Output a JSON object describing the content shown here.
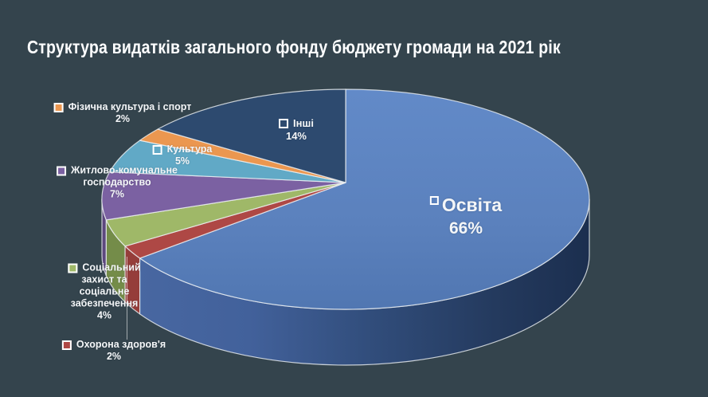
{
  "page": {
    "background": "#34444d"
  },
  "header": {
    "title": "Структура видатків загального фонду бюджету громади на 2021 рік",
    "title_color": "#ffffff"
  },
  "chart_data": {
    "type": "pie",
    "style": "3d",
    "title": "Структура видатків загального фонду бюджету громади на 2021 рік",
    "unit": "percent",
    "total": 100,
    "direction": "clockwise",
    "start_angle_deg": 0,
    "legend_position": "data-labels-with-keys",
    "slices": [
      {
        "slug": "osvita",
        "label": "Освіта",
        "value": 66,
        "percent_label": "66%",
        "color": "#5b81bd",
        "side_color": "gradient"
      },
      {
        "slug": "okhorona-zdorovia",
        "label": "Охорона здоров'я",
        "value": 2,
        "percent_label": "2%",
        "color": "#ae4845",
        "side_color": "#953d3a"
      },
      {
        "slug": "sotsialnyi-zakhyst",
        "label": "Соціальний захист та соціальне забезпечення",
        "value": 4,
        "percent_label": "4%",
        "color": "#9fb868",
        "side_color": "#748c49"
      },
      {
        "slug": "zhytlovo-komunalne",
        "label": "Житлово-комунальне господарство",
        "value": 7,
        "percent_label": "7%",
        "color": "#7b61a2",
        "side_color": "#5d487e"
      },
      {
        "slug": "kultura",
        "label": "Культура",
        "value": 5,
        "percent_label": "5%",
        "color": "#61a9c6",
        "side_color": "#4d89a8"
      },
      {
        "slug": "fizychna-kultura",
        "label": "Фізична культура і спорт",
        "value": 2,
        "percent_label": "2%",
        "color": "#eb9750",
        "side_color": "#c07638"
      },
      {
        "slug": "inshi",
        "label": "Інші",
        "value": 14,
        "percent_label": "14%",
        "color": "#2d4a6f",
        "side_color": "#223a59"
      }
    ],
    "side_gradient": [
      "#4a69a3",
      "#42619b",
      "#314d7b",
      "#243a5e",
      "#1b2e4e"
    ],
    "edge_line_color": "#eef1f4"
  },
  "label_blocks": {
    "fizkultura": {
      "line1": "Фізична культура і спорт",
      "line2": "2%"
    },
    "inshi": {
      "line1": "Інші",
      "line2": "14%"
    },
    "kultura": {
      "line1": "Культура",
      "line2": "5%"
    },
    "zhkg": {
      "line1": "Житлово-комунальне",
      "line2": "господарство",
      "line3": "7%"
    },
    "sots": {
      "line1": "Соціальний",
      "line2": "захист та",
      "line3": "соціальне",
      "line4": "забезпечення",
      "line5": "4%"
    },
    "okhorona": {
      "line1": "Охорона здоров'я",
      "line2": "2%"
    },
    "osvita": {
      "line1": "Освіта",
      "line2": "66%"
    }
  }
}
